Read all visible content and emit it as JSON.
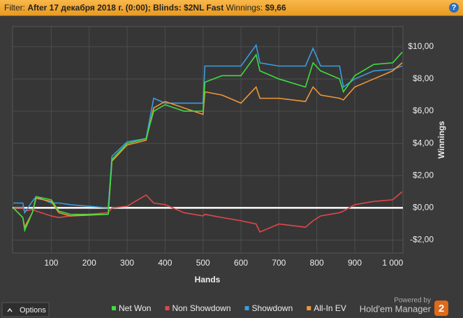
{
  "header": {
    "filter_label": "Filter:",
    "filter_value": "After 17 декабря 2018 г. (0:00); Blinds: $2NL Fast",
    "winnings_label": "Winnings:",
    "winnings_value": "$9,66",
    "help": "?"
  },
  "chart_data": {
    "type": "line",
    "x_label": "Hands",
    "y_label": "Winnings",
    "x": [
      0,
      25,
      30,
      50,
      60,
      100,
      120,
      150,
      250,
      260,
      300,
      350,
      370,
      400,
      450,
      500,
      505,
      550,
      600,
      640,
      650,
      700,
      770,
      790,
      810,
      860,
      870,
      900,
      950,
      1000,
      1025
    ],
    "series": [
      {
        "name": "Net Won",
        "color": "#3fdc3f",
        "values": [
          0,
          -0.6,
          -1.4,
          -0.3,
          0.7,
          0.5,
          -0.2,
          -0.4,
          -0.4,
          3.0,
          4.0,
          4.3,
          6.0,
          6.4,
          6.0,
          6.0,
          7.8,
          8.2,
          8.2,
          9.5,
          8.5,
          8.0,
          7.5,
          9.0,
          8.5,
          8.0,
          7.2,
          8.2,
          8.9,
          9.0,
          9.66
        ]
      },
      {
        "name": "Non Showdown",
        "color": "#e04848",
        "values": [
          0,
          0,
          -0.2,
          -0.1,
          -0.2,
          -0.5,
          -0.6,
          -0.5,
          -0.3,
          0.0,
          0.1,
          0.8,
          0.3,
          0.2,
          -0.3,
          -0.5,
          -0.4,
          -0.6,
          -0.8,
          -1.0,
          -1.5,
          -1.0,
          -1.2,
          -0.8,
          -0.5,
          -0.3,
          -0.2,
          0.2,
          0.4,
          0.5,
          1.0
        ]
      },
      {
        "name": "Showdown",
        "color": "#3a9de0",
        "values": [
          0.3,
          0.3,
          -0.3,
          0.4,
          0.7,
          0.3,
          0.3,
          0.2,
          0.0,
          3.2,
          4.1,
          4.3,
          6.8,
          6.5,
          6.5,
          6.5,
          8.8,
          8.8,
          8.8,
          10.1,
          9.0,
          8.8,
          8.8,
          9.9,
          8.8,
          8.8,
          7.5,
          8.0,
          8.5,
          8.6,
          8.8
        ]
      },
      {
        "name": "All-In EV",
        "color": "#f0963a",
        "values": [
          0,
          -0.6,
          -1.2,
          -0.3,
          0.6,
          0.4,
          -0.3,
          -0.5,
          -0.4,
          2.9,
          3.9,
          4.2,
          6.2,
          6.6,
          6.2,
          5.8,
          7.2,
          7.0,
          6.5,
          7.5,
          6.8,
          6.8,
          6.6,
          7.5,
          7.0,
          6.8,
          6.7,
          7.5,
          8.0,
          8.5,
          9.0
        ]
      }
    ],
    "xlim": [
      -2,
      1027
    ],
    "ylim": [
      -2.8,
      11.25
    ],
    "xticks": [
      100,
      200,
      300,
      400,
      500,
      600,
      700,
      800,
      900,
      {
        "value": 1000,
        "label": "1 000"
      }
    ],
    "yticks": [
      {
        "value": 10,
        "label": "$10,00"
      },
      {
        "value": 8,
        "label": "$8,00"
      },
      {
        "value": 6,
        "label": "$6,00"
      },
      {
        "value": 4,
        "label": "$4,00"
      },
      {
        "value": 2,
        "label": "$2,00"
      },
      {
        "value": 0,
        "label": "$0,00"
      },
      {
        "value": -2,
        "label": "-$2,00"
      }
    ],
    "grid": true
  },
  "footer": {
    "options": "Options",
    "powered_by": "Powered by",
    "brand": "Hold'em Manager",
    "badge": "2"
  }
}
